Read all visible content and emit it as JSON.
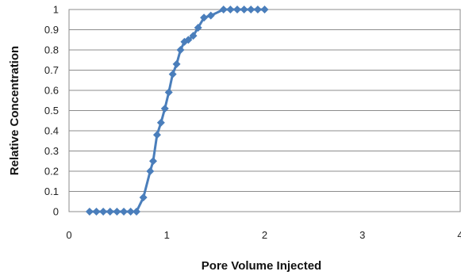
{
  "chart_data": {
    "type": "line",
    "title": "",
    "xlabel": "Pore Volume Injected",
    "ylabel": "Relative Concentration",
    "xlim": [
      0,
      4
    ],
    "ylim": [
      0,
      1
    ],
    "x_ticks": [
      "0",
      "1",
      "2",
      "3",
      "4"
    ],
    "y_ticks": [
      "0",
      "0.1",
      "0.2",
      "0.3",
      "0.4",
      "0.5",
      "0.6",
      "0.7",
      "0.8",
      "0.9",
      "1"
    ],
    "grid": "horizontal major",
    "legend": "none",
    "series": [
      {
        "color": "#4a7ebb",
        "marker": "diamond",
        "x": [
          0.21,
          0.28,
          0.35,
          0.42,
          0.49,
          0.56,
          0.63,
          0.69,
          0.76,
          0.83,
          0.86,
          0.9,
          0.94,
          0.98,
          1.02,
          1.06,
          1.1,
          1.14,
          1.18,
          1.22,
          1.27,
          1.32,
          1.38,
          1.45,
          1.58,
          1.65,
          1.72,
          1.79,
          1.86,
          1.93,
          2.0
        ],
        "y": [
          0.0,
          0.0,
          0.0,
          0.0,
          0.0,
          0.0,
          0.0,
          0.0,
          0.07,
          0.2,
          0.25,
          0.38,
          0.44,
          0.51,
          0.59,
          0.68,
          0.73,
          0.8,
          0.84,
          0.85,
          0.87,
          0.91,
          0.96,
          0.97,
          1.0,
          1.0,
          1.0,
          1.0,
          1.0,
          1.0,
          1.0
        ]
      }
    ]
  }
}
